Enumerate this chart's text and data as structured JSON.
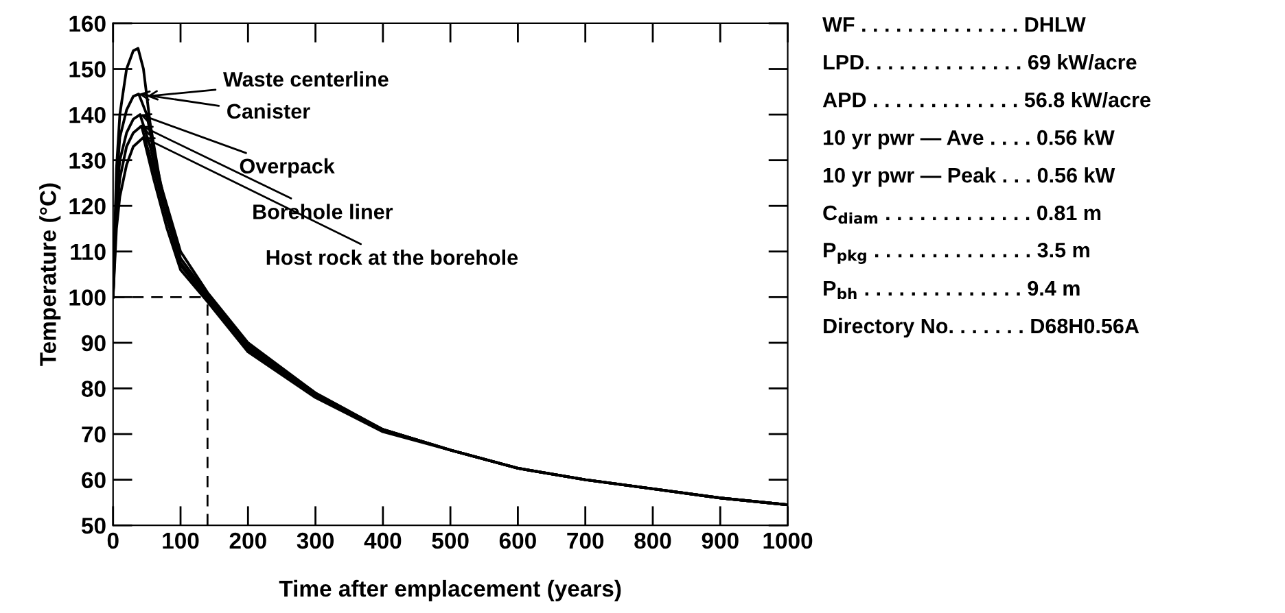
{
  "chart_data": [
    {
      "type": "line",
      "xlabel": "Time after emplacement (years)",
      "ylabel": "Temperature (°C)",
      "xlim": [
        0,
        1000
      ],
      "ylim": [
        50,
        160
      ],
      "xticks": [
        0,
        100,
        200,
        300,
        400,
        500,
        600,
        700,
        800,
        900,
        1000
      ],
      "yticks": [
        50,
        60,
        70,
        80,
        90,
        100,
        110,
        120,
        130,
        140,
        150,
        160
      ],
      "grid": false,
      "legend": false,
      "marker": "none",
      "line_style": "solid",
      "series": [
        {
          "color": "#000000",
          "x": [
            0,
            5,
            10,
            20,
            30,
            37,
            45,
            55,
            70,
            100,
            140,
            200,
            300,
            400,
            500,
            600,
            700,
            800,
            900,
            1000
          ],
          "values": [
            100,
            128,
            140,
            150,
            154,
            154.5,
            150,
            138,
            125,
            110,
            101,
            90,
            79,
            71,
            66.5,
            62.5,
            60,
            58,
            56,
            54.5
          ]
        },
        {
          "color": "#000000",
          "x": [
            0,
            5,
            10,
            20,
            30,
            38,
            50,
            60,
            75,
            100,
            140,
            200,
            300,
            400,
            500,
            600,
            700,
            800,
            900,
            1000
          ],
          "values": [
            100,
            125,
            135,
            141,
            144,
            144.5,
            140,
            132,
            122,
            108.5,
            100.5,
            89.5,
            79,
            71,
            66.5,
            62.5,
            60,
            58,
            56,
            54.5
          ]
        },
        {
          "color": "#000000",
          "x": [
            0,
            5,
            10,
            20,
            30,
            40,
            55,
            75,
            100,
            140,
            200,
            300,
            400,
            500,
            600,
            700,
            800,
            900,
            1000
          ],
          "values": [
            100,
            122,
            130,
            136,
            139,
            140,
            133,
            120,
            107.5,
            100,
            89,
            78.5,
            71,
            66.5,
            62.5,
            60,
            58,
            56,
            54.5
          ]
        },
        {
          "color": "#000000",
          "x": [
            0,
            5,
            10,
            20,
            30,
            42,
            60,
            80,
            100,
            140,
            200,
            300,
            400,
            500,
            600,
            700,
            800,
            900,
            1000
          ],
          "values": [
            100,
            118,
            126,
            133,
            136,
            137.5,
            128,
            117,
            107,
            99.5,
            88.5,
            78.5,
            71,
            66.5,
            62.5,
            60,
            58,
            56,
            54.5
          ]
        },
        {
          "color": "#000000",
          "x": [
            0,
            5,
            10,
            20,
            30,
            45,
            60,
            80,
            100,
            140,
            200,
            300,
            400,
            500,
            600,
            700,
            800,
            900,
            1000
          ],
          "values": [
            100,
            115,
            122,
            129,
            133,
            135,
            126,
            115,
            106,
            99,
            88,
            78,
            70.5,
            66.5,
            62.5,
            60,
            58,
            56,
            54.5
          ]
        }
      ],
      "annotations": [
        {
          "text": "Waste centerline",
          "x": 50,
          "y": 144
        },
        {
          "text": "Canister",
          "x": 38,
          "y": 144.5
        },
        {
          "text": "Overpack",
          "x": 40,
          "y": 140
        },
        {
          "text": "Borehole liner",
          "x": 42,
          "y": 137.5
        },
        {
          "text": "Host rock at the borehole",
          "x": 45,
          "y": 135
        }
      ],
      "ref_lines": [
        {
          "axis": "y",
          "value": 100,
          "line_style": "dashed",
          "color": "#000000"
        },
        {
          "axis": "x",
          "value": 140,
          "line_style": "dashed",
          "color": "#000000"
        }
      ]
    },
    {
      "type": "other",
      "annotations": [
        "WF . . . . . . . . . . . . . . DHLW",
        "LPD. . . . . . . . . . . . . . 69 kW/acre",
        "APD . . . . . . . . . . . . . 56.8 kW/acre",
        "10 yr pwr — Ave . . . . 0.56 kW",
        "10 yr pwr — Peak . . . 0.56 kW",
        "C$_{diam}$ . . . . . . . . . . . . . 0.81 m",
        "P$_{pkg}$ . . . . . . . . . . . . . . 3.5 m",
        "P$_{bh}$ . . . . . . . . . . . . . . 9.4 m",
        "Directory No. . . . . . . D68H0.56A"
      ]
    }
  ]
}
